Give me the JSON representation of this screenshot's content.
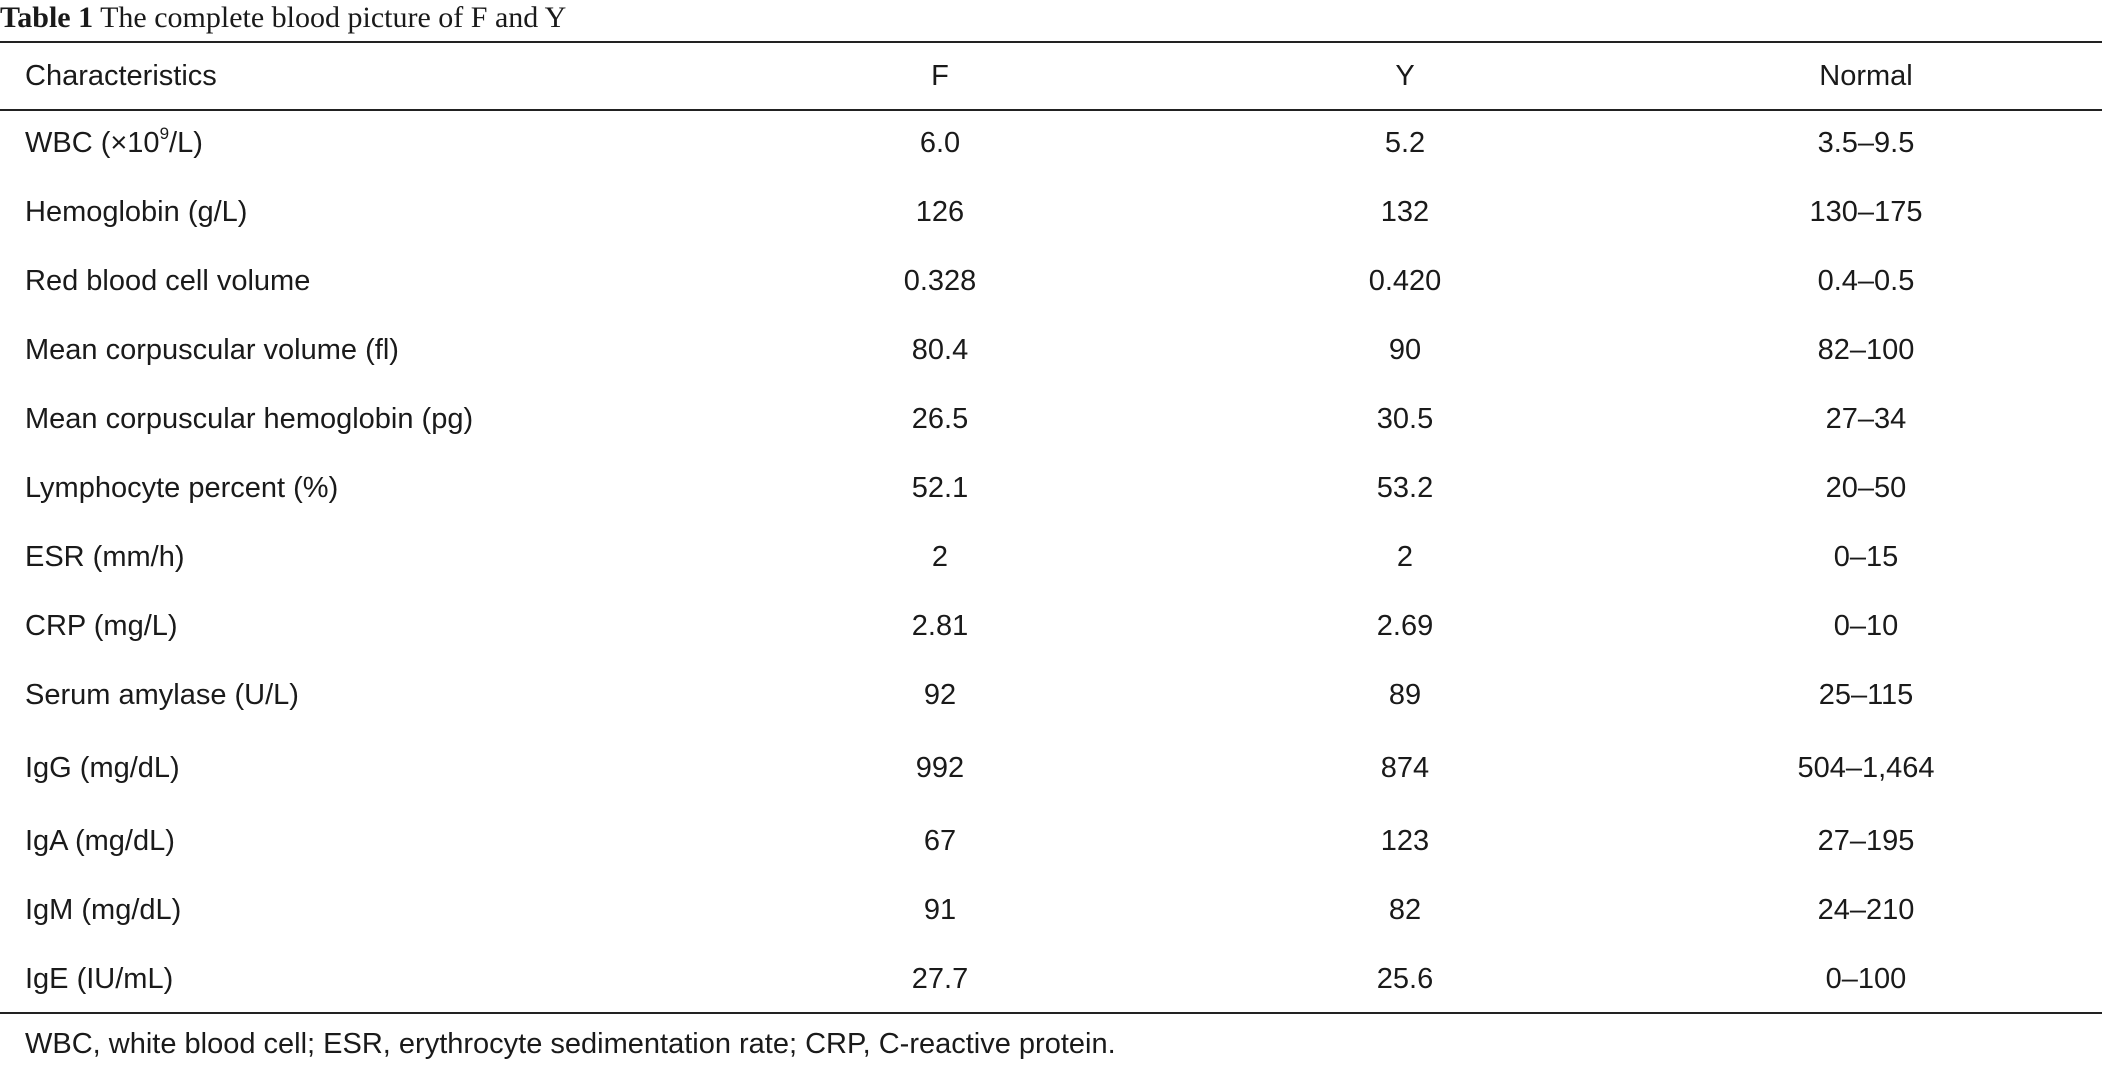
{
  "caption": {
    "label": "Table 1",
    "title": "The complete blood picture of F and Y"
  },
  "table": {
    "headers": [
      "Characteristics",
      "F",
      "Y",
      "Normal"
    ],
    "rows": [
      {
        "pre": "WBC (×10",
        "sup": "9",
        "post": "/L)",
        "f": "6.0",
        "y": "5.2",
        "normal": "3.5–9.5"
      },
      {
        "label": "Hemoglobin (g/L)",
        "f": "126",
        "y": "132",
        "normal": "130–175"
      },
      {
        "label": "Red blood cell volume",
        "f": "0.328",
        "y": "0.420",
        "normal": "0.4–0.5"
      },
      {
        "label": "Mean corpuscular volume (fl)",
        "f": "80.4",
        "y": "90",
        "normal": "82–100"
      },
      {
        "label": "Mean corpuscular hemoglobin (pg)",
        "f": "26.5",
        "y": "30.5",
        "normal": "27–34"
      },
      {
        "label": "Lymphocyte percent (%)",
        "f": "52.1",
        "y": "53.2",
        "normal": "20–50"
      },
      {
        "label": "ESR (mm/h)",
        "f": "2",
        "y": "2",
        "normal": "0–15"
      },
      {
        "label": "CRP (mg/L)",
        "f": "2.81",
        "y": "2.69",
        "normal": "0–10"
      },
      {
        "label": "Serum amylase (U/L)",
        "f": "92",
        "y": "89",
        "normal": "25–115"
      },
      {
        "label": "IgG (mg/dL)",
        "f": "992",
        "y": "874",
        "normal": "504–1,464"
      },
      {
        "label": "IgA (mg/dL)",
        "f": "67",
        "y": "123",
        "normal": "27–195"
      },
      {
        "label": "IgM (mg/dL)",
        "f": "91",
        "y": "82",
        "normal": "24–210"
      },
      {
        "label": "IgE (IU/mL)",
        "f": "27.7",
        "y": "25.6",
        "normal": "0–100"
      }
    ]
  },
  "footnote": "WBC, white blood cell; ESR, erythrocyte sedimentation rate; CRP, C-reactive protein."
}
